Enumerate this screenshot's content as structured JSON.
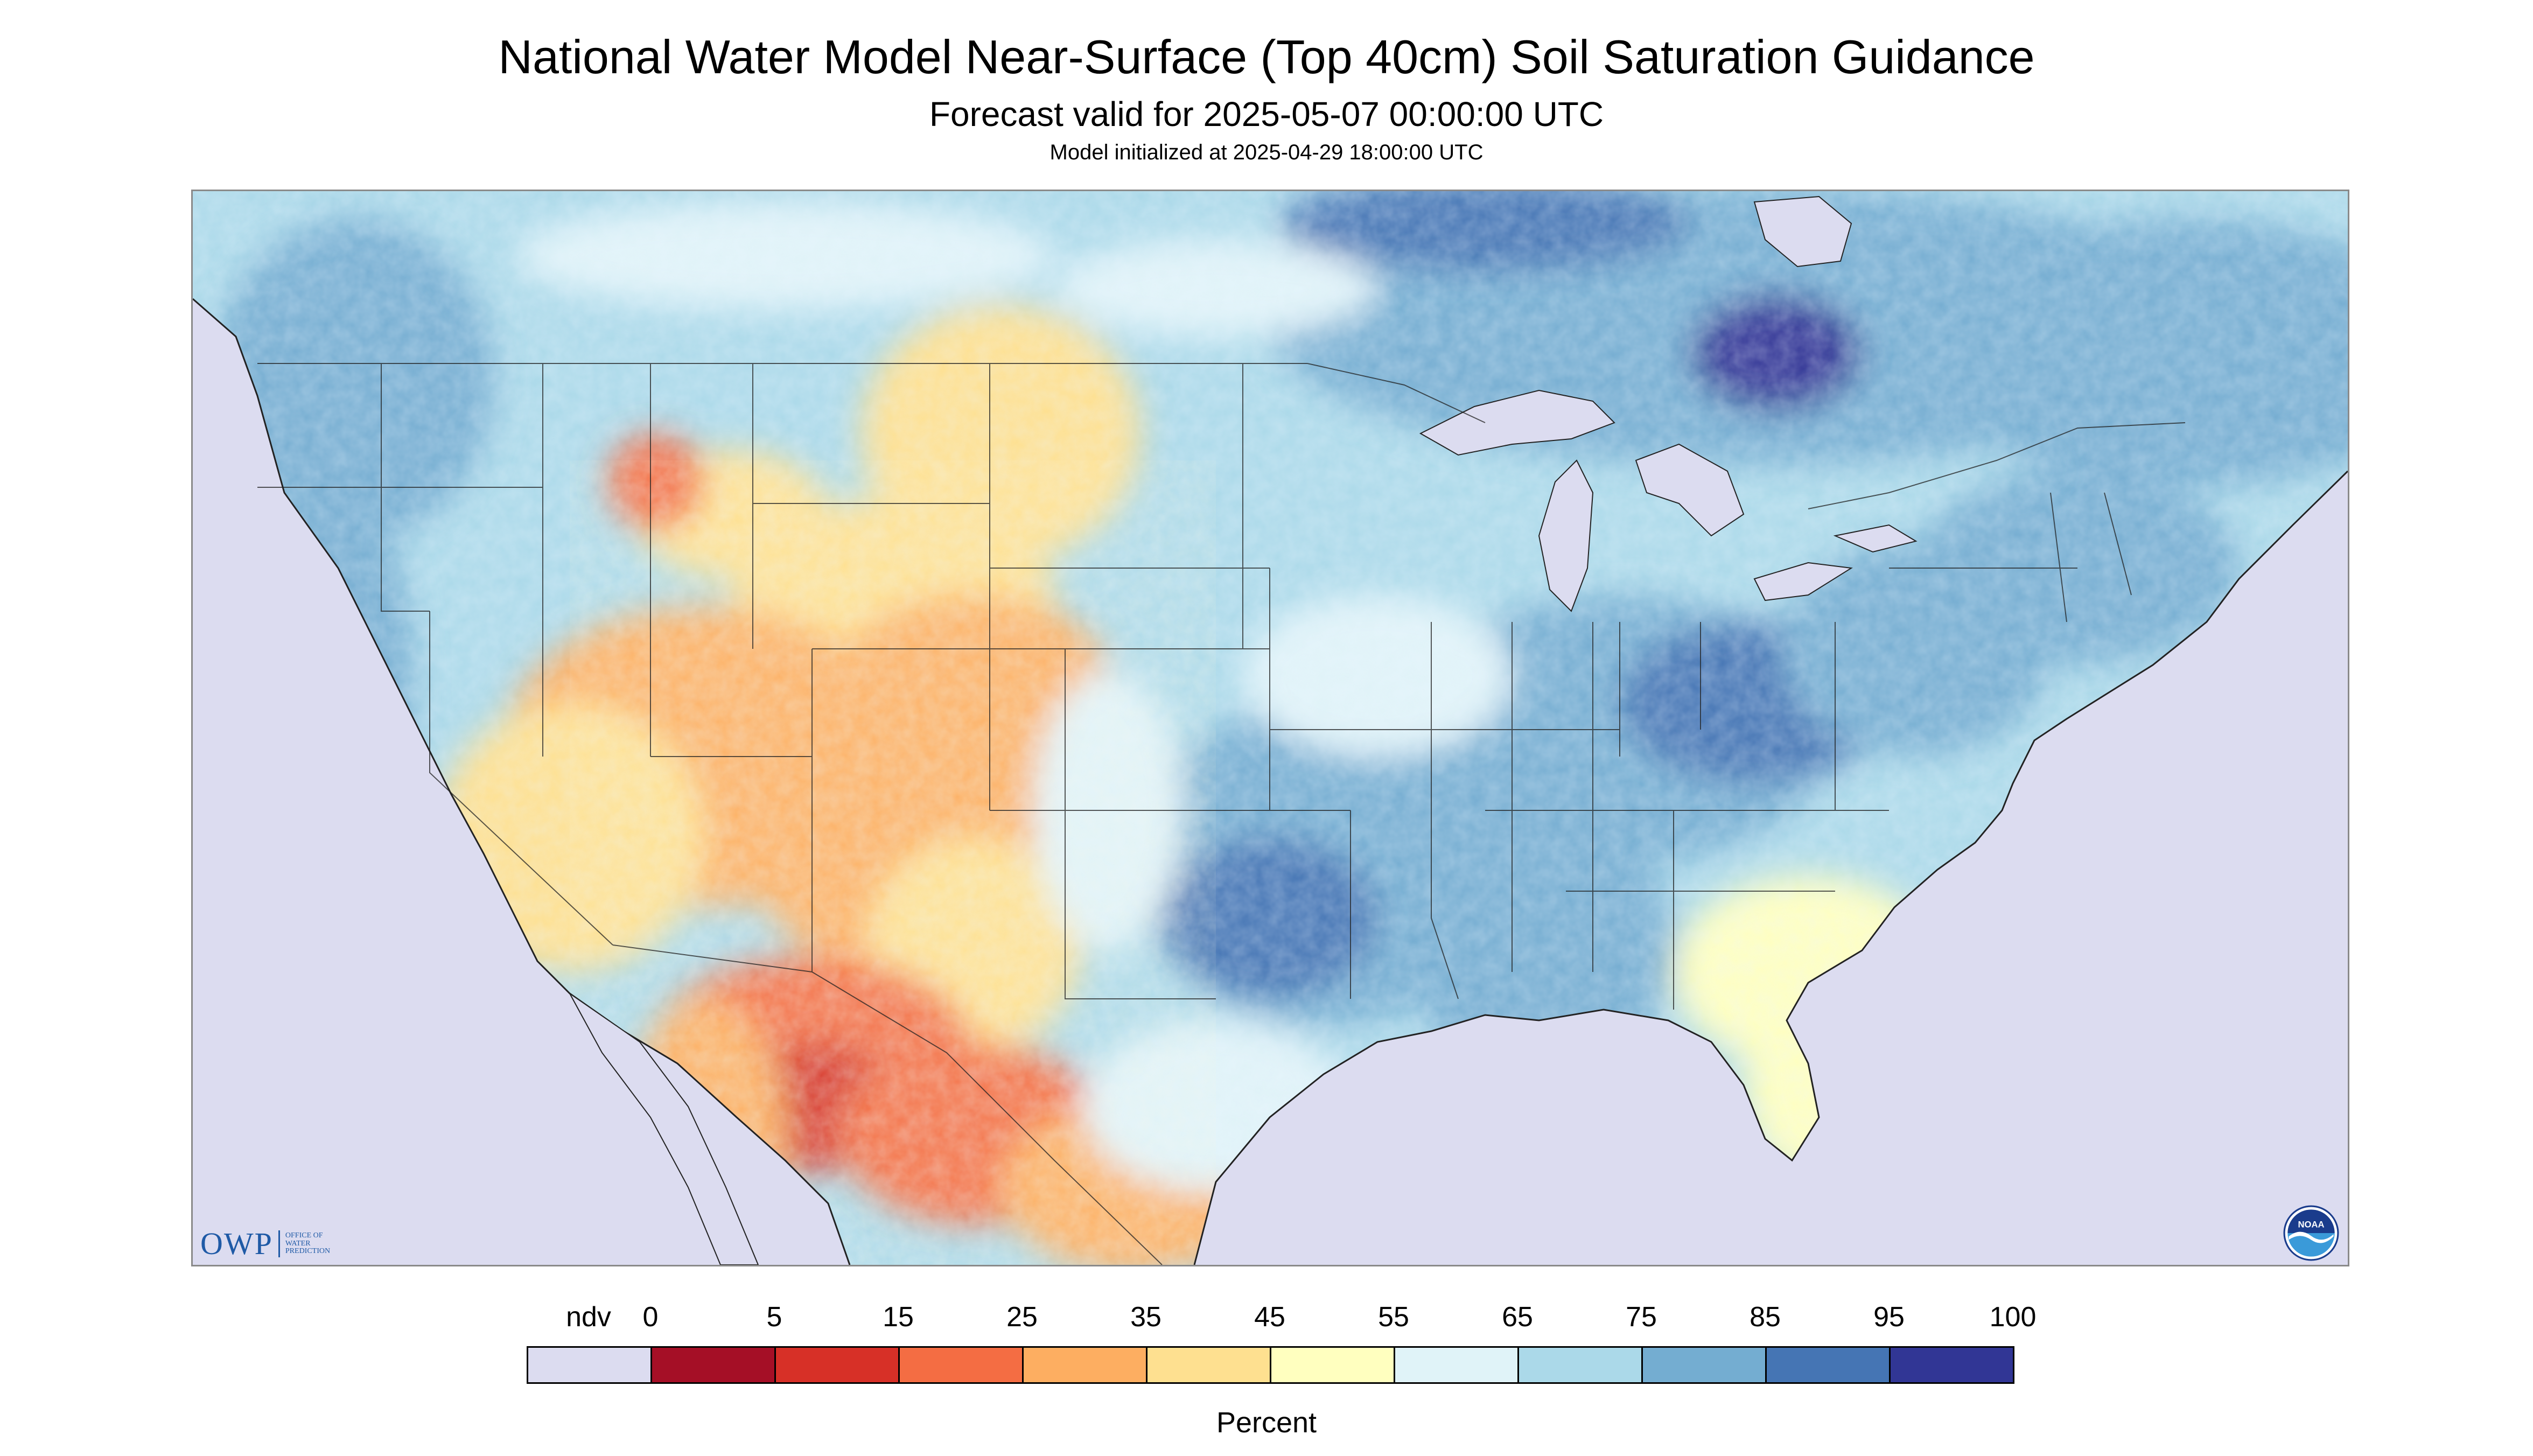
{
  "title": "National Water Model Near-Surface (Top 40cm) Soil Saturation Guidance",
  "subtitle": "Forecast valid for 2025-05-07 00:00:00 UTC",
  "subsubtitle": "Model initialized at 2025-04-29 18:00:00 UTC",
  "legend": {
    "title": "Percent",
    "ticks": [
      "ndv",
      "0",
      "5",
      "15",
      "25",
      "35",
      "45",
      "55",
      "65",
      "75",
      "85",
      "95",
      "100"
    ],
    "colors": [
      "#dcdcf0",
      "#a50f26",
      "#d73027",
      "#f46d43",
      "#fdae61",
      "#fee090",
      "#ffffbf",
      "#e0f3f8",
      "#abd9e9",
      "#74add1",
      "#4575b4",
      "#313695"
    ]
  },
  "logos": {
    "owp": {
      "letters": "OWP",
      "line1": "Office of",
      "line2": "Water",
      "line3": "Prediction"
    },
    "noaa": {
      "text": "NOAA",
      "icon": "noaa-seal-icon"
    }
  },
  "map": {
    "nodata_color": "#dcdcf0",
    "water_color": "#dcdcf0",
    "boundary_color": "#222222"
  }
}
